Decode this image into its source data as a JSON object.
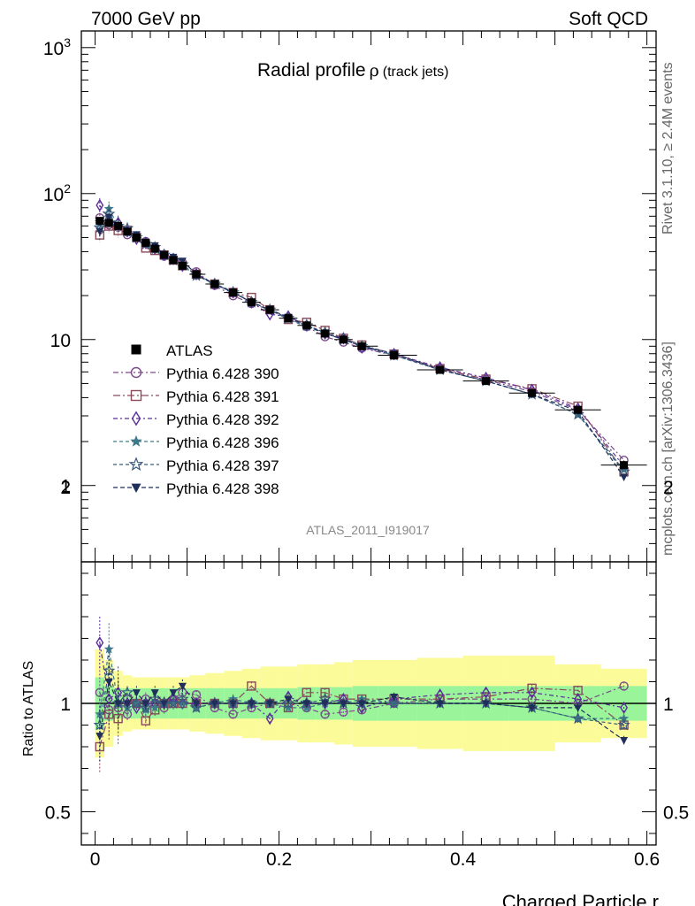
{
  "header": {
    "left": "7000 GeV pp",
    "right": "Soft QCD"
  },
  "side": {
    "rivet": "Rivet 3.1.10, ≥ 2.4M events",
    "mcplots": "mcplots.cern.ch [arXiv:1306.3436]"
  },
  "chart_data": {
    "type": "line",
    "title": "Radial profile",
    "title_symbol": "ρ",
    "title_suffix": "(track jets)",
    "analysis_tag": "ATLAS_2011_I919017",
    "xlabel": "Charged Particle r",
    "ylabel_ratio": "Ratio to ATLAS",
    "xlim": [
      -0.015,
      0.61
    ],
    "ylim": [
      0.3,
      1300
    ],
    "yscale": "log",
    "ratio_ylim": [
      0.3,
      2.3
    ],
    "x_ticks": [
      "0",
      "0.2",
      "0.4",
      "0.6"
    ],
    "y_ticks": [
      "1",
      "10",
      "10^2",
      "10^3"
    ],
    "ratio_ticks": [
      "0.5",
      "1",
      "2"
    ],
    "x": [
      0.005,
      0.015,
      0.025,
      0.035,
      0.045,
      0.055,
      0.065,
      0.075,
      0.085,
      0.095,
      0.11,
      0.13,
      0.15,
      0.17,
      0.19,
      0.21,
      0.23,
      0.25,
      0.27,
      0.29,
      0.325,
      0.375,
      0.425,
      0.475,
      0.525,
      0.575
    ],
    "atlas": {
      "name": "ATLAS",
      "values": [
        65,
        63,
        60,
        55,
        50,
        46,
        42,
        38,
        35,
        32,
        28,
        24,
        21,
        18,
        16,
        14,
        12.5,
        11,
        10,
        9,
        7.8,
        6.2,
        5.2,
        4.3,
        3.3,
        1.38
      ],
      "band_inner": [
        0.12,
        0.08,
        0.07,
        0.07,
        0.07,
        0.07,
        0.07,
        0.07,
        0.07,
        0.07,
        0.07,
        0.07,
        0.07,
        0.07,
        0.07,
        0.07,
        0.075,
        0.075,
        0.075,
        0.08,
        0.08,
        0.08,
        0.08,
        0.08,
        0.08,
        0.08
      ],
      "band_outer": [
        0.25,
        0.2,
        0.15,
        0.13,
        0.12,
        0.12,
        0.12,
        0.12,
        0.12,
        0.12,
        0.13,
        0.14,
        0.15,
        0.16,
        0.17,
        0.17,
        0.18,
        0.18,
        0.19,
        0.2,
        0.2,
        0.21,
        0.22,
        0.22,
        0.18,
        0.16
      ]
    },
    "series": [
      {
        "name": "Pythia 6.428 390",
        "color": "#7b4b8c",
        "marker": "circle-open",
        "dash": "6,3,2,3",
        "ratio": [
          1.05,
          0.97,
          0.98,
          0.95,
          1.0,
          1.02,
          1.0,
          0.98,
          1.02,
          1.05,
          1.04,
          0.98,
          0.95,
          0.98,
          1.0,
          1.0,
          0.98,
          0.95,
          0.96,
          0.97,
          1.0,
          1.02,
          1.02,
          1.02,
          1.0,
          1.08
        ]
      },
      {
        "name": "Pythia 6.428 391",
        "color": "#8b4a5a",
        "marker": "square-open",
        "dash": "8,3,2,3",
        "ratio": [
          0.8,
          0.95,
          0.93,
          1.02,
          1.0,
          0.92,
          0.97,
          1.0,
          1.0,
          1.0,
          1.0,
          1.0,
          1.0,
          1.08,
          1.0,
          0.98,
          1.05,
          1.05,
          1.02,
          1.02,
          1.02,
          1.02,
          1.03,
          1.07,
          1.06,
          0.9
        ]
      },
      {
        "name": "Pythia 6.428 392",
        "color": "#5b2f9a",
        "marker": "diamond-open",
        "dash": "5,3,2,3",
        "ratio": [
          1.28,
          1.02,
          1.05,
          1.0,
          0.98,
          1.0,
          1.0,
          1.0,
          1.02,
          1.0,
          1.0,
          1.0,
          1.0,
          1.0,
          0.93,
          1.03,
          1.0,
          1.0,
          1.02,
          0.98,
          1.02,
          1.04,
          1.05,
          1.05,
          1.02,
          0.98
        ]
      },
      {
        "name": "Pythia 6.428 396",
        "color": "#3f7a8a",
        "marker": "star-filled",
        "dash": "4,3",
        "ratio": [
          0.95,
          1.25,
          1.0,
          0.98,
          1.0,
          0.97,
          0.98,
          1.0,
          1.0,
          1.0,
          0.98,
          1.0,
          1.02,
          1.0,
          1.0,
          0.98,
          0.98,
          1.0,
          1.0,
          1.02,
          1.0,
          1.0,
          1.0,
          0.98,
          0.93,
          0.93
        ]
      },
      {
        "name": "Pythia 6.428 397",
        "color": "#3a5a7a",
        "marker": "star-open",
        "dash": "4,3",
        "ratio": [
          0.9,
          1.15,
          1.0,
          1.05,
          1.0,
          0.98,
          1.02,
          1.0,
          1.0,
          1.02,
          0.98,
          1.0,
          1.0,
          1.0,
          1.0,
          1.0,
          1.0,
          1.02,
          1.0,
          1.0,
          1.0,
          1.0,
          1.0,
          0.98,
          0.93,
          0.9
        ]
      },
      {
        "name": "Pythia 6.428 398",
        "color": "#1f2f5a",
        "marker": "triangle-down-filled",
        "dash": "5,3",
        "ratio": [
          0.85,
          1.1,
          1.0,
          1.0,
          1.05,
          1.0,
          1.05,
          1.0,
          1.05,
          1.08,
          1.0,
          1.0,
          1.0,
          1.0,
          1.0,
          1.02,
          1.0,
          1.0,
          1.0,
          1.0,
          1.03,
          1.0,
          1.0,
          0.98,
          0.98,
          0.83
        ]
      }
    ]
  }
}
